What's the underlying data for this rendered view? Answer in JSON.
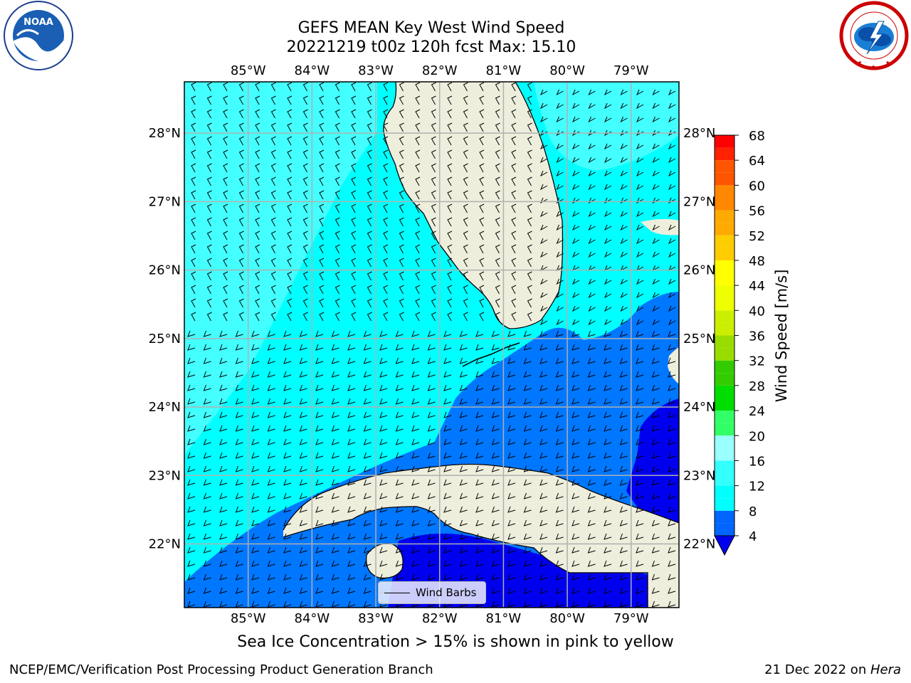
{
  "header": {
    "title": "GEFS MEAN Key West Wind Speed",
    "subtitle": "20221219 t00z 120h fcst   Max: 15.10"
  },
  "logos": {
    "left": {
      "name": "noaa-logo",
      "text": "NOAA",
      "ring_text": "NATIONAL OCEANIC AND ATMOSPHERIC ADMINISTRATION · U.S. DEPARTMENT OF COMMERCE"
    },
    "right": {
      "name": "nws-logo",
      "ring_text": "NATIONAL WEATHER SERVICE"
    }
  },
  "map": {
    "lon_labels": [
      "85°W",
      "84°W",
      "83°W",
      "82°W",
      "81°W",
      "80°W",
      "79°W"
    ],
    "lon_values": [
      -85,
      -84,
      -83,
      -82,
      -81,
      -80,
      -79
    ],
    "lat_labels": [
      "28°N",
      "27°N",
      "26°N",
      "25°N",
      "24°N",
      "23°N",
      "22°N"
    ],
    "lat_values": [
      28,
      27,
      26,
      25,
      24,
      23,
      22
    ],
    "extent": {
      "lon_min": -86.0,
      "lon_max": -78.25,
      "lat_min": 21.07,
      "lat_max": 28.75
    },
    "legend_label": "Wind Barbs",
    "land_color": "#eeeedd",
    "grid_color": "#b0b0b0"
  },
  "colorbar": {
    "label": "Wind Speed [m/s]",
    "ticks": [
      "4",
      "8",
      "12",
      "16",
      "20",
      "24",
      "28",
      "32",
      "36",
      "40",
      "44",
      "48",
      "52",
      "56",
      "60",
      "64",
      "68"
    ],
    "levels": [
      4,
      6,
      8,
      10,
      12,
      14,
      16,
      18,
      20,
      22,
      24,
      26,
      28,
      30,
      32,
      34,
      36,
      38,
      40,
      42,
      44,
      46,
      48,
      50,
      52,
      54,
      56,
      58,
      60,
      62,
      64,
      66,
      68
    ],
    "colors": [
      "#0066ff",
      "#0066ff",
      "#00ffff",
      "#00ffff",
      "#33ffff",
      "#33ffff",
      "#99ffff",
      "#99ffff",
      "#33ff66",
      "#33ff66",
      "#00dd00",
      "#00dd00",
      "#33cc00",
      "#33cc00",
      "#99dd00",
      "#99dd00",
      "#ccee00",
      "#ccee00",
      "#eeff00",
      "#eeff00",
      "#ffff00",
      "#ffff00",
      "#ffcc00",
      "#ffcc00",
      "#ffaa00",
      "#ffaa00",
      "#ff8800",
      "#ff8800",
      "#ff5500",
      "#ff5500",
      "#ff2200",
      "#ff0000"
    ],
    "under_color": "#0000ee"
  },
  "speed_colors": {
    "lt4": "#0000ee",
    "b4_8": "#0077ff",
    "b8_12": "#00ffff",
    "b12_16": "#44ffff"
  },
  "caption": "Sea Ice Concentration > 15% is shown in pink to yellow",
  "footer": {
    "left": "NCEP/EMC/Verification Post Processing Product Generation Branch",
    "date": "21 Dec 2022 on ",
    "host": "Hera"
  }
}
